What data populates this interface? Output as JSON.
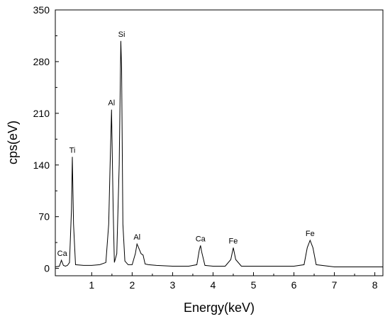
{
  "chart_data": {
    "type": "line",
    "title": "",
    "xlabel": "Energy(keV)",
    "ylabel": "cps(eV)",
    "xlim": [
      0.1,
      8.2
    ],
    "ylim": [
      -10,
      350
    ],
    "xticks": [
      1,
      2,
      3,
      4,
      5,
      6,
      7,
      8
    ],
    "xtick_labels": [
      "1",
      "2",
      "3",
      "4",
      "5",
      "6",
      "7",
      "8"
    ],
    "yticks": [
      0,
      70,
      140,
      210,
      280,
      350
    ],
    "ytick_labels": [
      "0",
      "70",
      "140",
      "210",
      "280",
      "350"
    ],
    "grid": false,
    "legend": "none",
    "line_color": "#000000",
    "series": [
      {
        "x": [
          0.1,
          0.2,
          0.25,
          0.3,
          0.35,
          0.4,
          0.45,
          0.5,
          0.52,
          0.55,
          0.6,
          0.8,
          1.0,
          1.2,
          1.35,
          1.42,
          1.45,
          1.49,
          1.53,
          1.56,
          1.62,
          1.68,
          1.72,
          1.74,
          1.77,
          1.82,
          1.9,
          2.0,
          2.08,
          2.12,
          2.16,
          2.22,
          2.27,
          2.32,
          2.4,
          2.6,
          3.0,
          3.4,
          3.6,
          3.66,
          3.69,
          3.72,
          3.8,
          4.0,
          4.3,
          4.44,
          4.5,
          4.56,
          4.7,
          5.0,
          5.5,
          6.0,
          6.25,
          6.33,
          6.4,
          6.47,
          6.55,
          7.0,
          7.5,
          8.0,
          8.2
        ],
        "y": [
          2,
          3,
          11,
          4,
          3,
          4,
          8,
          80,
          151,
          60,
          5,
          4,
          4,
          5,
          8,
          60,
          130,
          215,
          80,
          8,
          20,
          140,
          308,
          270,
          60,
          10,
          5,
          5,
          20,
          33,
          28,
          20,
          18,
          6,
          5,
          4,
          3,
          3,
          5,
          25,
          31,
          22,
          4,
          3,
          3,
          12,
          28,
          12,
          3,
          3,
          3,
          3,
          5,
          28,
          38,
          28,
          5,
          2,
          2,
          2,
          2
        ]
      }
    ],
    "annotations": [
      {
        "text": "Ca",
        "x": 0.27,
        "y": 11
      },
      {
        "text": "Ti",
        "x": 0.52,
        "y": 151
      },
      {
        "text": "Al",
        "x": 1.49,
        "y": 215
      },
      {
        "text": "Si",
        "x": 1.74,
        "y": 308
      },
      {
        "text": "Al",
        "x": 2.12,
        "y": 33
      },
      {
        "text": "Ca",
        "x": 3.69,
        "y": 31
      },
      {
        "text": "Fe",
        "x": 4.5,
        "y": 28
      },
      {
        "text": "Fe",
        "x": 6.4,
        "y": 38
      }
    ]
  }
}
